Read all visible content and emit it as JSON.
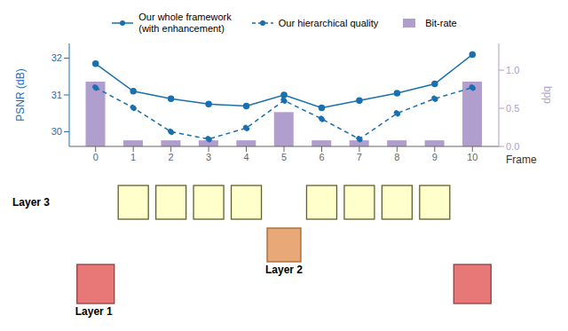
{
  "chart_data": {
    "type": "line",
    "x": [
      0,
      1,
      2,
      3,
      4,
      5,
      6,
      7,
      8,
      9,
      10
    ],
    "xlim": [
      -0.7,
      10.7
    ],
    "xticks": [
      0,
      1,
      2,
      3,
      4,
      5,
      6,
      7,
      8,
      9,
      10
    ],
    "xlabel": "Frame",
    "ylabel": "PSNR (dB)",
    "y2label": "bpp",
    "ylim": [
      29.6,
      32.4
    ],
    "yticks": [
      30,
      31,
      32
    ],
    "y2lim": [
      0,
      1.35
    ],
    "y2ticks": [
      {
        "value": 0,
        "label": "0.0"
      },
      0.5,
      {
        "value": 1.0,
        "label": "1.0"
      }
    ],
    "legend": "top",
    "series": [
      {
        "name": "Our whole framework\n(with enhancement)",
        "type": "line",
        "color": "#1a6faf",
        "marker": "circle",
        "line_style": "solid",
        "values": [
          31.85,
          31.1,
          30.9,
          30.75,
          30.7,
          31.0,
          30.65,
          30.85,
          31.05,
          31.3,
          32.1
        ]
      },
      {
        "name": "Our hierarchical quality",
        "type": "line",
        "color": "#1a6faf",
        "marker": "circle",
        "line_style": "dashed",
        "values": [
          31.2,
          30.65,
          30.0,
          29.8,
          30.1,
          30.85,
          30.35,
          29.8,
          30.5,
          30.9,
          31.2
        ]
      },
      {
        "name": "Bit-rate",
        "type": "bar",
        "axis": "y2",
        "color": "#b09ece",
        "values": [
          0.85,
          0.08,
          0.08,
          0.08,
          0.08,
          0.45,
          0.08,
          0.08,
          0.08,
          0.08,
          0.85
        ]
      }
    ],
    "annotations": [
      {
        "text": "Layer 3",
        "frames": [
          1,
          2,
          3,
          4,
          6,
          7,
          8,
          9
        ],
        "color": "#ffffcc",
        "edge_color": "#606030"
      },
      {
        "text": "Layer 2",
        "frames": [
          5
        ],
        "color": "#e8a878",
        "edge_color": "#a06830"
      },
      {
        "text": "Layer 1",
        "frames": [
          0,
          10
        ],
        "color": "#e87878",
        "edge_color": "#904040"
      }
    ]
  }
}
